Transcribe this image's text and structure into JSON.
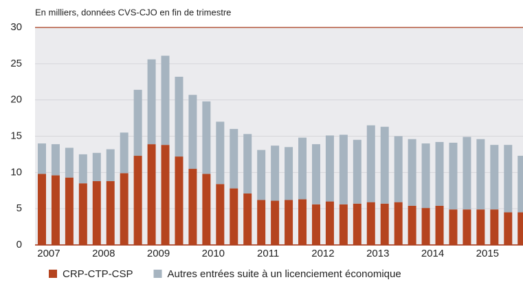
{
  "chart_data": {
    "type": "stacked-bar",
    "subtitle": "En milliers, données CVS-CJO en fin de trimestre",
    "categories": [
      "2007",
      null,
      null,
      null,
      "2008",
      null,
      null,
      null,
      "2009",
      null,
      null,
      null,
      "2010",
      null,
      null,
      null,
      "2011",
      null,
      null,
      null,
      "2012",
      null,
      null,
      null,
      "2013",
      null,
      null,
      null,
      "2014",
      null,
      null,
      null,
      "2015",
      null,
      null,
      null
    ],
    "series": [
      {
        "name": "CRP-CTP-CSP",
        "color": "#b5441f",
        "values": [
          9.8,
          9.6,
          9.3,
          8.5,
          8.8,
          8.8,
          9.9,
          12.3,
          13.9,
          13.8,
          12.2,
          10.5,
          9.8,
          8.4,
          7.8,
          7.1,
          6.2,
          6.1,
          6.2,
          6.3,
          5.6,
          6.0,
          5.6,
          5.7,
          5.9,
          5.7,
          5.9,
          5.4,
          5.1,
          5.4,
          4.9,
          4.9,
          4.9,
          4.9,
          4.5,
          4.5
        ]
      },
      {
        "name": "Autres entrées suite à un licenciement économique",
        "color": "#a6b4c0",
        "values": [
          4.2,
          4.3,
          4.1,
          4.0,
          3.9,
          4.4,
          5.6,
          9.1,
          11.7,
          12.3,
          11.0,
          10.2,
          10.0,
          8.6,
          8.2,
          8.2,
          6.9,
          7.6,
          7.3,
          8.5,
          8.3,
          9.1,
          9.6,
          8.8,
          10.6,
          10.6,
          9.1,
          9.2,
          8.9,
          8.8,
          9.2,
          10.0,
          9.7,
          8.9,
          9.3,
          7.8
        ]
      }
    ],
    "ylim": [
      0,
      30
    ],
    "yticks": [
      0,
      5,
      10,
      15,
      20,
      25,
      30
    ],
    "grid": true
  }
}
